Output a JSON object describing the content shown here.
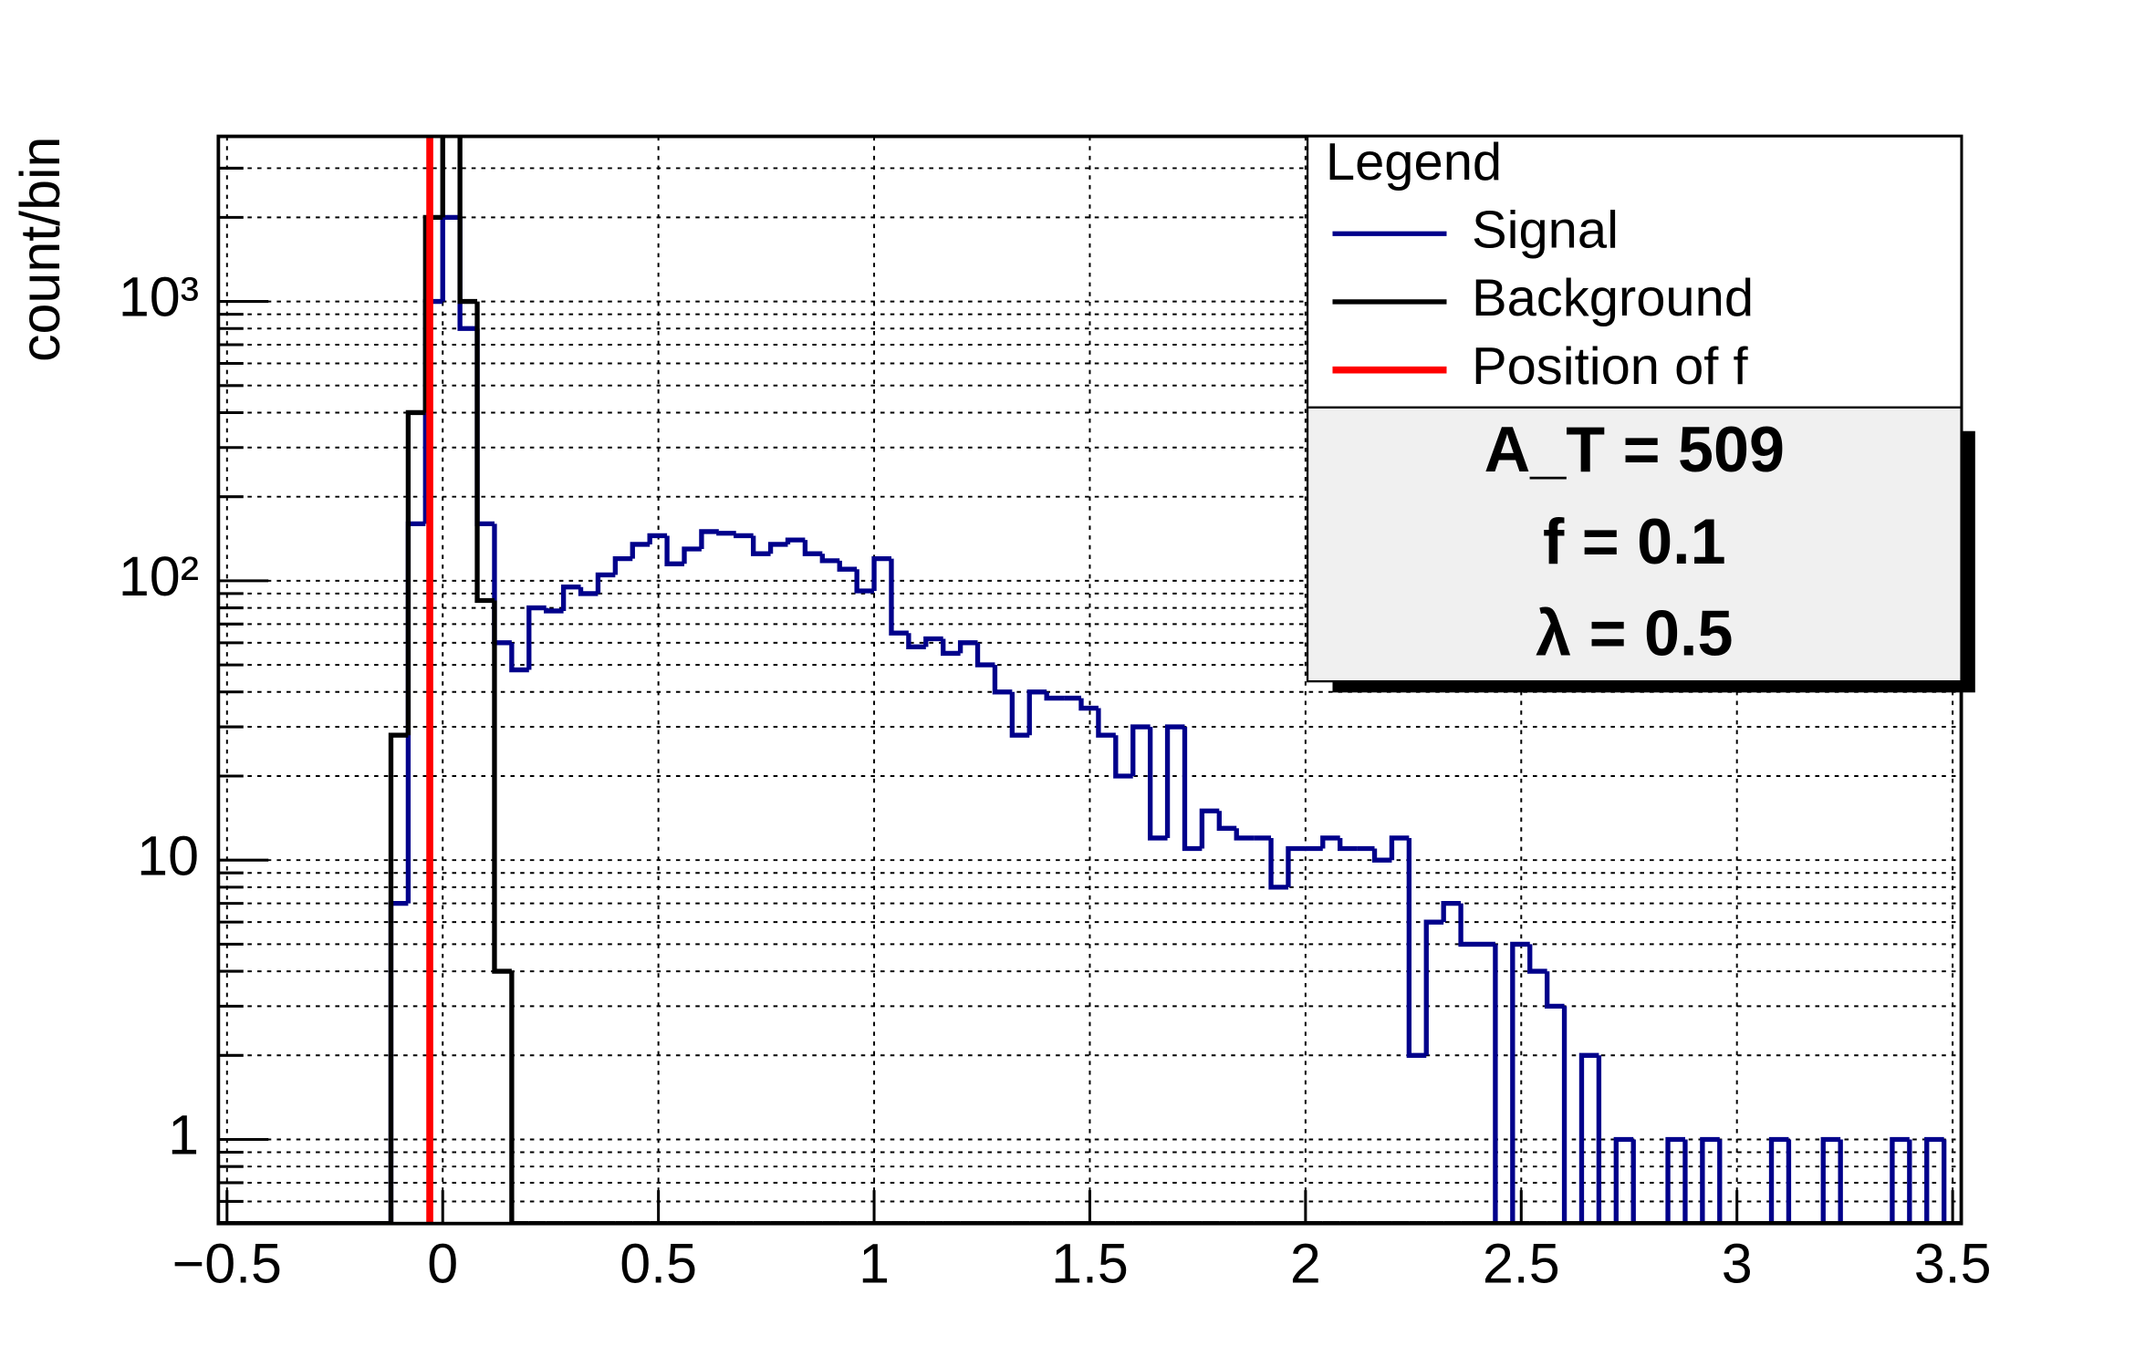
{
  "chart_data": {
    "type": "histogram",
    "y_label": "count/bin",
    "log_y": true,
    "grid": true,
    "legend_title": "Legend",
    "legend_position": "upper right",
    "bins": [
      -0.52,
      -0.48,
      -0.44,
      -0.4,
      -0.36,
      -0.32,
      -0.28,
      -0.24,
      -0.2,
      -0.16,
      -0.12,
      -0.08,
      -0.04,
      0,
      0.04,
      0.08,
      0.12,
      0.16,
      0.2,
      0.24,
      0.28,
      0.32,
      0.36,
      0.4,
      0.44,
      0.48,
      0.52,
      0.56,
      0.6,
      0.64,
      0.68,
      0.72,
      0.76,
      0.8,
      0.84,
      0.88,
      0.92,
      0.96,
      1,
      1.04,
      1.08,
      1.12,
      1.16,
      1.2,
      1.24,
      1.28,
      1.32,
      1.36,
      1.4,
      1.44,
      1.48,
      1.52,
      1.56,
      1.6,
      1.64,
      1.68,
      1.72,
      1.76,
      1.8,
      1.84,
      1.88,
      1.92,
      1.96,
      2,
      2.04,
      2.08,
      2.12,
      2.16,
      2.2,
      2.24,
      2.28,
      2.32,
      2.36,
      2.4,
      2.44,
      2.48,
      2.52,
      2.56,
      2.6,
      2.64,
      2.68,
      2.72,
      2.76,
      2.8,
      2.84,
      2.88,
      2.92,
      2.96,
      3,
      3.04,
      3.08,
      3.12,
      3.16,
      3.2,
      3.24,
      3.28,
      3.32,
      3.36,
      3.4,
      3.44,
      3.48,
      3.52
    ],
    "series": [
      {
        "name": "Signal",
        "color": "#00008b",
        "values": [
          0,
          0,
          0,
          0,
          0,
          0,
          0,
          0,
          0,
          0,
          7,
          160,
          1000,
          2000,
          800,
          160,
          60,
          48,
          80,
          78,
          95,
          90,
          105,
          120,
          135,
          145,
          115,
          130,
          150,
          148,
          145,
          125,
          135,
          140,
          125,
          118,
          110,
          92,
          120,
          65,
          58,
          62,
          55,
          60,
          50,
          40,
          28,
          40,
          38,
          38,
          35,
          28,
          20,
          30,
          12,
          30,
          11,
          15,
          13,
          12,
          12,
          8,
          11,
          11,
          12,
          11,
          11,
          10,
          12,
          2,
          6,
          7,
          5,
          5,
          0,
          5,
          4,
          3,
          0,
          2,
          0,
          1,
          0,
          0,
          1,
          0,
          1,
          0,
          0,
          0,
          1,
          0,
          0,
          1,
          0,
          0,
          0,
          1,
          0,
          1,
          0
        ]
      },
      {
        "name": "Background",
        "color": "#000000",
        "values": [
          0,
          0,
          0,
          0,
          0,
          0,
          0,
          0,
          0,
          0,
          28,
          400,
          2000,
          5000,
          1000,
          85,
          4,
          0,
          0,
          0,
          0,
          0,
          0,
          0,
          0,
          0,
          0,
          0,
          0,
          0,
          0,
          0,
          0,
          0,
          0,
          0,
          0,
          0,
          0,
          0,
          0,
          0,
          0,
          0,
          0,
          0,
          0,
          0,
          0,
          0,
          0,
          0,
          0,
          0,
          0,
          0,
          0,
          0,
          0,
          0,
          0,
          0,
          0,
          0,
          0,
          0,
          0,
          0,
          0,
          0,
          0,
          0,
          0,
          0,
          0,
          0,
          0,
          0,
          0,
          0,
          0,
          0,
          0,
          0,
          0,
          0,
          0,
          0,
          0,
          0,
          0,
          0,
          0,
          0,
          0,
          0,
          0,
          0,
          0,
          0,
          0
        ]
      }
    ],
    "vlines": [
      {
        "name": "Position of f",
        "x": -0.03,
        "color": "#ff0000"
      }
    ],
    "xlim": [
      -0.52,
      3.52
    ],
    "xticks": [
      {
        "value": -0.5,
        "label": "−0.5"
      },
      0,
      0.5,
      1,
      1.5,
      2,
      2.5,
      3,
      3.5
    ],
    "ylim": [
      0.5,
      3900
    ],
    "yticks": [
      1,
      10,
      {
        "value": 100,
        "label": "10²"
      },
      {
        "value": 1000,
        "label": "10³"
      }
    ],
    "yminorticks": [
      0.6,
      0.7,
      0.8,
      0.9,
      2,
      3,
      4,
      5,
      6,
      7,
      8,
      9,
      20,
      30,
      40,
      50,
      60,
      70,
      80,
      90,
      200,
      300,
      400,
      500,
      600,
      700,
      800,
      900,
      2000,
      3000
    ],
    "annotations": [
      "A_T = 509",
      "f = 0.1",
      "λ = 0.5"
    ]
  }
}
